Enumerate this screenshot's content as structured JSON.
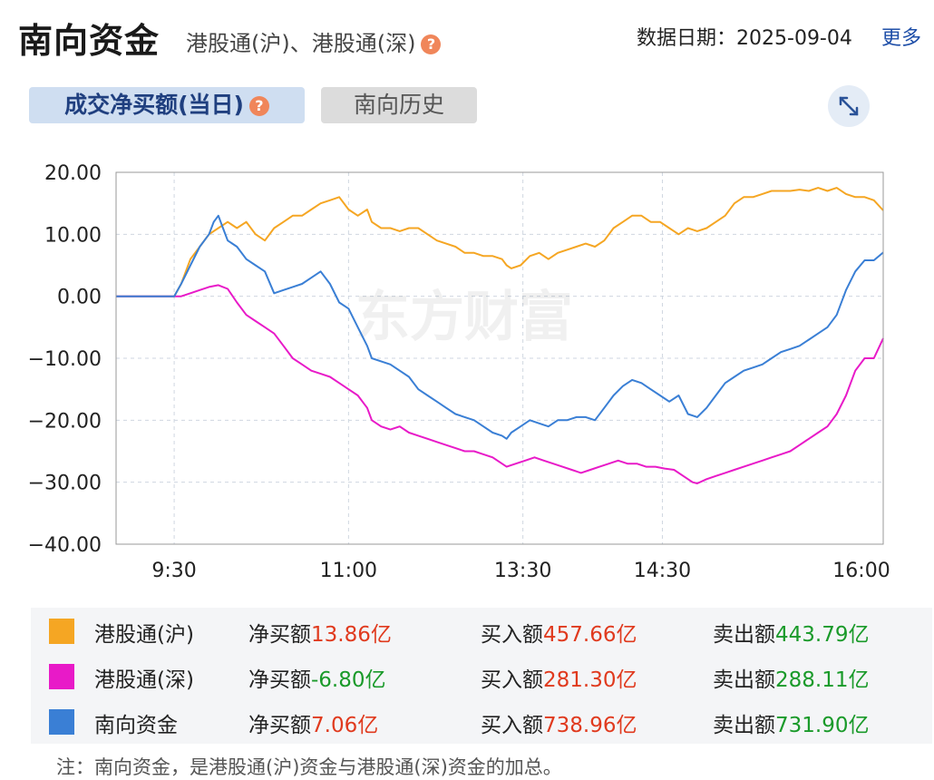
{
  "header": {
    "title": "南向资金",
    "subtitle": "港股通(沪)、港股通(深)",
    "help_icon": "question-icon",
    "date_label": "数据日期：",
    "date_value": "2025-09-04",
    "more_label": "更多"
  },
  "tabs": [
    {
      "label": "成交净买额(当日)",
      "active": true
    },
    {
      "label": "南向历史",
      "active": false
    }
  ],
  "expand_icon": "expand-arrows-icon",
  "watermark": "东方财富",
  "colors": {
    "hgt_sh": "#f5a623",
    "hgt_sz": "#e81ac8",
    "south": "#3a7fd5"
  },
  "chart_data": {
    "type": "line",
    "y_ticks": [
      "20.00",
      "10.00",
      "0.00",
      "−10.00",
      "−20.00",
      "−30.00",
      "−40.00"
    ],
    "ylim": [
      -40,
      20
    ],
    "x_ticks": [
      "9:30",
      "11:00",
      "13:30",
      "14:30",
      "16:00"
    ],
    "x_unit": "trading minutes from 9:00",
    "grid": true,
    "series": [
      {
        "name": "港股通(沪)",
        "points": [
          [
            0,
            0
          ],
          [
            25,
            0
          ],
          [
            28,
            2
          ],
          [
            32,
            6
          ],
          [
            36,
            8
          ],
          [
            40,
            10
          ],
          [
            44,
            11
          ],
          [
            48,
            12
          ],
          [
            52,
            11
          ],
          [
            56,
            12
          ],
          [
            60,
            10
          ],
          [
            64,
            9
          ],
          [
            68,
            11
          ],
          [
            72,
            12
          ],
          [
            76,
            13
          ],
          [
            80,
            13
          ],
          [
            84,
            14
          ],
          [
            88,
            15
          ],
          [
            92,
            15.5
          ],
          [
            96,
            16
          ],
          [
            100,
            14
          ],
          [
            104,
            13
          ],
          [
            108,
            14
          ],
          [
            110,
            12
          ],
          [
            114,
            11
          ],
          [
            118,
            11
          ],
          [
            122,
            10.5
          ],
          [
            126,
            11
          ],
          [
            130,
            11
          ],
          [
            134,
            10
          ],
          [
            138,
            9
          ],
          [
            142,
            8.5
          ],
          [
            146,
            8
          ],
          [
            150,
            7
          ],
          [
            154,
            7
          ],
          [
            158,
            6.5
          ],
          [
            162,
            6.5
          ],
          [
            166,
            6
          ],
          [
            168,
            5
          ],
          [
            170,
            4.5
          ],
          [
            174,
            5
          ],
          [
            178,
            6.5
          ],
          [
            182,
            7
          ],
          [
            186,
            6
          ],
          [
            190,
            7
          ],
          [
            194,
            7.5
          ],
          [
            198,
            8
          ],
          [
            202,
            8.5
          ],
          [
            206,
            8
          ],
          [
            210,
            9
          ],
          [
            214,
            11
          ],
          [
            218,
            12
          ],
          [
            222,
            13
          ],
          [
            226,
            13
          ],
          [
            230,
            12
          ],
          [
            234,
            12
          ],
          [
            238,
            11
          ],
          [
            242,
            10
          ],
          [
            246,
            11
          ],
          [
            250,
            10.5
          ],
          [
            254,
            11
          ],
          [
            258,
            12
          ],
          [
            262,
            13
          ],
          [
            266,
            15
          ],
          [
            270,
            16
          ],
          [
            274,
            16
          ],
          [
            278,
            16.5
          ],
          [
            282,
            17
          ],
          [
            286,
            17
          ],
          [
            290,
            17
          ],
          [
            294,
            17.2
          ],
          [
            298,
            17
          ],
          [
            302,
            17.5
          ],
          [
            306,
            17
          ],
          [
            310,
            17.5
          ],
          [
            314,
            16.5
          ],
          [
            318,
            16
          ],
          [
            322,
            16
          ],
          [
            326,
            15.5
          ],
          [
            330,
            13.86
          ]
        ]
      },
      {
        "name": "港股通(深)",
        "points": [
          [
            0,
            0
          ],
          [
            25,
            0
          ],
          [
            28,
            0
          ],
          [
            32,
            0.5
          ],
          [
            36,
            1
          ],
          [
            40,
            1.5
          ],
          [
            44,
            1.8
          ],
          [
            48,
            1.2
          ],
          [
            52,
            -1
          ],
          [
            56,
            -3
          ],
          [
            60,
            -4
          ],
          [
            64,
            -5
          ],
          [
            68,
            -6
          ],
          [
            72,
            -8
          ],
          [
            76,
            -10
          ],
          [
            80,
            -11
          ],
          [
            84,
            -12
          ],
          [
            88,
            -12.5
          ],
          [
            92,
            -13
          ],
          [
            96,
            -14
          ],
          [
            100,
            -15
          ],
          [
            104,
            -16
          ],
          [
            108,
            -18
          ],
          [
            110,
            -20
          ],
          [
            114,
            -21
          ],
          [
            118,
            -21.5
          ],
          [
            122,
            -21
          ],
          [
            126,
            -22
          ],
          [
            130,
            -22.5
          ],
          [
            134,
            -23
          ],
          [
            138,
            -23.5
          ],
          [
            142,
            -24
          ],
          [
            146,
            -24.5
          ],
          [
            150,
            -25
          ],
          [
            154,
            -25
          ],
          [
            158,
            -25.5
          ],
          [
            162,
            -26
          ],
          [
            166,
            -27
          ],
          [
            168,
            -27.5
          ],
          [
            172,
            -27
          ],
          [
            176,
            -26.5
          ],
          [
            180,
            -26
          ],
          [
            184,
            -26.5
          ],
          [
            188,
            -27
          ],
          [
            192,
            -27.5
          ],
          [
            196,
            -28
          ],
          [
            200,
            -28.5
          ],
          [
            204,
            -28
          ],
          [
            208,
            -27.5
          ],
          [
            212,
            -27
          ],
          [
            216,
            -26.5
          ],
          [
            220,
            -27
          ],
          [
            224,
            -27
          ],
          [
            228,
            -27.5
          ],
          [
            232,
            -27.5
          ],
          [
            236,
            -27.8
          ],
          [
            240,
            -28
          ],
          [
            244,
            -29
          ],
          [
            248,
            -30
          ],
          [
            250,
            -30.2
          ],
          [
            254,
            -29.5
          ],
          [
            258,
            -29
          ],
          [
            262,
            -28.5
          ],
          [
            266,
            -28
          ],
          [
            270,
            -27.5
          ],
          [
            274,
            -27
          ],
          [
            278,
            -26.5
          ],
          [
            282,
            -26
          ],
          [
            286,
            -25.5
          ],
          [
            290,
            -25
          ],
          [
            294,
            -24
          ],
          [
            298,
            -23
          ],
          [
            302,
            -22
          ],
          [
            306,
            -21
          ],
          [
            310,
            -19
          ],
          [
            314,
            -16
          ],
          [
            318,
            -12
          ],
          [
            322,
            -10
          ],
          [
            326,
            -10
          ],
          [
            330,
            -6.8
          ]
        ]
      },
      {
        "name": "南向资金",
        "points": [
          [
            0,
            0
          ],
          [
            25,
            0
          ],
          [
            28,
            2
          ],
          [
            32,
            5
          ],
          [
            36,
            8
          ],
          [
            40,
            10
          ],
          [
            42,
            12
          ],
          [
            44,
            13
          ],
          [
            46,
            11
          ],
          [
            48,
            9
          ],
          [
            52,
            8
          ],
          [
            56,
            6
          ],
          [
            60,
            5
          ],
          [
            64,
            4
          ],
          [
            68,
            0.5
          ],
          [
            72,
            1
          ],
          [
            76,
            1.5
          ],
          [
            80,
            2
          ],
          [
            84,
            3
          ],
          [
            88,
            4
          ],
          [
            92,
            2
          ],
          [
            96,
            -1
          ],
          [
            100,
            -2
          ],
          [
            104,
            -5
          ],
          [
            108,
            -8
          ],
          [
            110,
            -10
          ],
          [
            114,
            -10.5
          ],
          [
            118,
            -11
          ],
          [
            122,
            -12
          ],
          [
            126,
            -13
          ],
          [
            130,
            -15
          ],
          [
            134,
            -16
          ],
          [
            138,
            -17
          ],
          [
            142,
            -18
          ],
          [
            146,
            -19
          ],
          [
            150,
            -19.5
          ],
          [
            154,
            -20
          ],
          [
            158,
            -21
          ],
          [
            162,
            -22
          ],
          [
            166,
            -22.5
          ],
          [
            168,
            -23
          ],
          [
            170,
            -22
          ],
          [
            174,
            -21
          ],
          [
            178,
            -20
          ],
          [
            182,
            -20.5
          ],
          [
            186,
            -21
          ],
          [
            190,
            -20
          ],
          [
            194,
            -20
          ],
          [
            198,
            -19.5
          ],
          [
            202,
            -19.5
          ],
          [
            206,
            -20
          ],
          [
            210,
            -18
          ],
          [
            214,
            -16
          ],
          [
            218,
            -14.5
          ],
          [
            222,
            -13.5
          ],
          [
            226,
            -14
          ],
          [
            230,
            -15
          ],
          [
            234,
            -16
          ],
          [
            238,
            -17
          ],
          [
            242,
            -16
          ],
          [
            246,
            -19
          ],
          [
            250,
            -19.5
          ],
          [
            254,
            -18
          ],
          [
            258,
            -16
          ],
          [
            262,
            -14
          ],
          [
            266,
            -13
          ],
          [
            270,
            -12
          ],
          [
            274,
            -11.5
          ],
          [
            278,
            -11
          ],
          [
            282,
            -10
          ],
          [
            286,
            -9
          ],
          [
            290,
            -8.5
          ],
          [
            294,
            -8
          ],
          [
            298,
            -7
          ],
          [
            302,
            -6
          ],
          [
            306,
            -5
          ],
          [
            310,
            -3
          ],
          [
            314,
            1
          ],
          [
            318,
            4
          ],
          [
            322,
            5.8
          ],
          [
            326,
            5.8
          ],
          [
            330,
            7.06
          ]
        ]
      }
    ]
  },
  "legend": [
    {
      "name": "港股通(沪)",
      "net_label": "净买额",
      "net_value": "13.86亿",
      "net_color": "red",
      "buy_label": "买入额",
      "buy_value": "457.66亿",
      "sell_label": "卖出额",
      "sell_value": "443.79亿"
    },
    {
      "name": "港股通(深)",
      "net_label": "净买额",
      "net_value": "-6.80亿",
      "net_color": "green",
      "buy_label": "买入额",
      "buy_value": "281.30亿",
      "sell_label": "卖出额",
      "sell_value": "288.11亿"
    },
    {
      "name": "南向资金",
      "net_label": "净买额",
      "net_value": "7.06亿",
      "net_color": "red",
      "buy_label": "买入额",
      "buy_value": "738.96亿",
      "sell_label": "卖出额",
      "sell_value": "731.90亿"
    }
  ],
  "note": "注：南向资金，是港股通(沪)资金与港股通(深)资金的加总。"
}
